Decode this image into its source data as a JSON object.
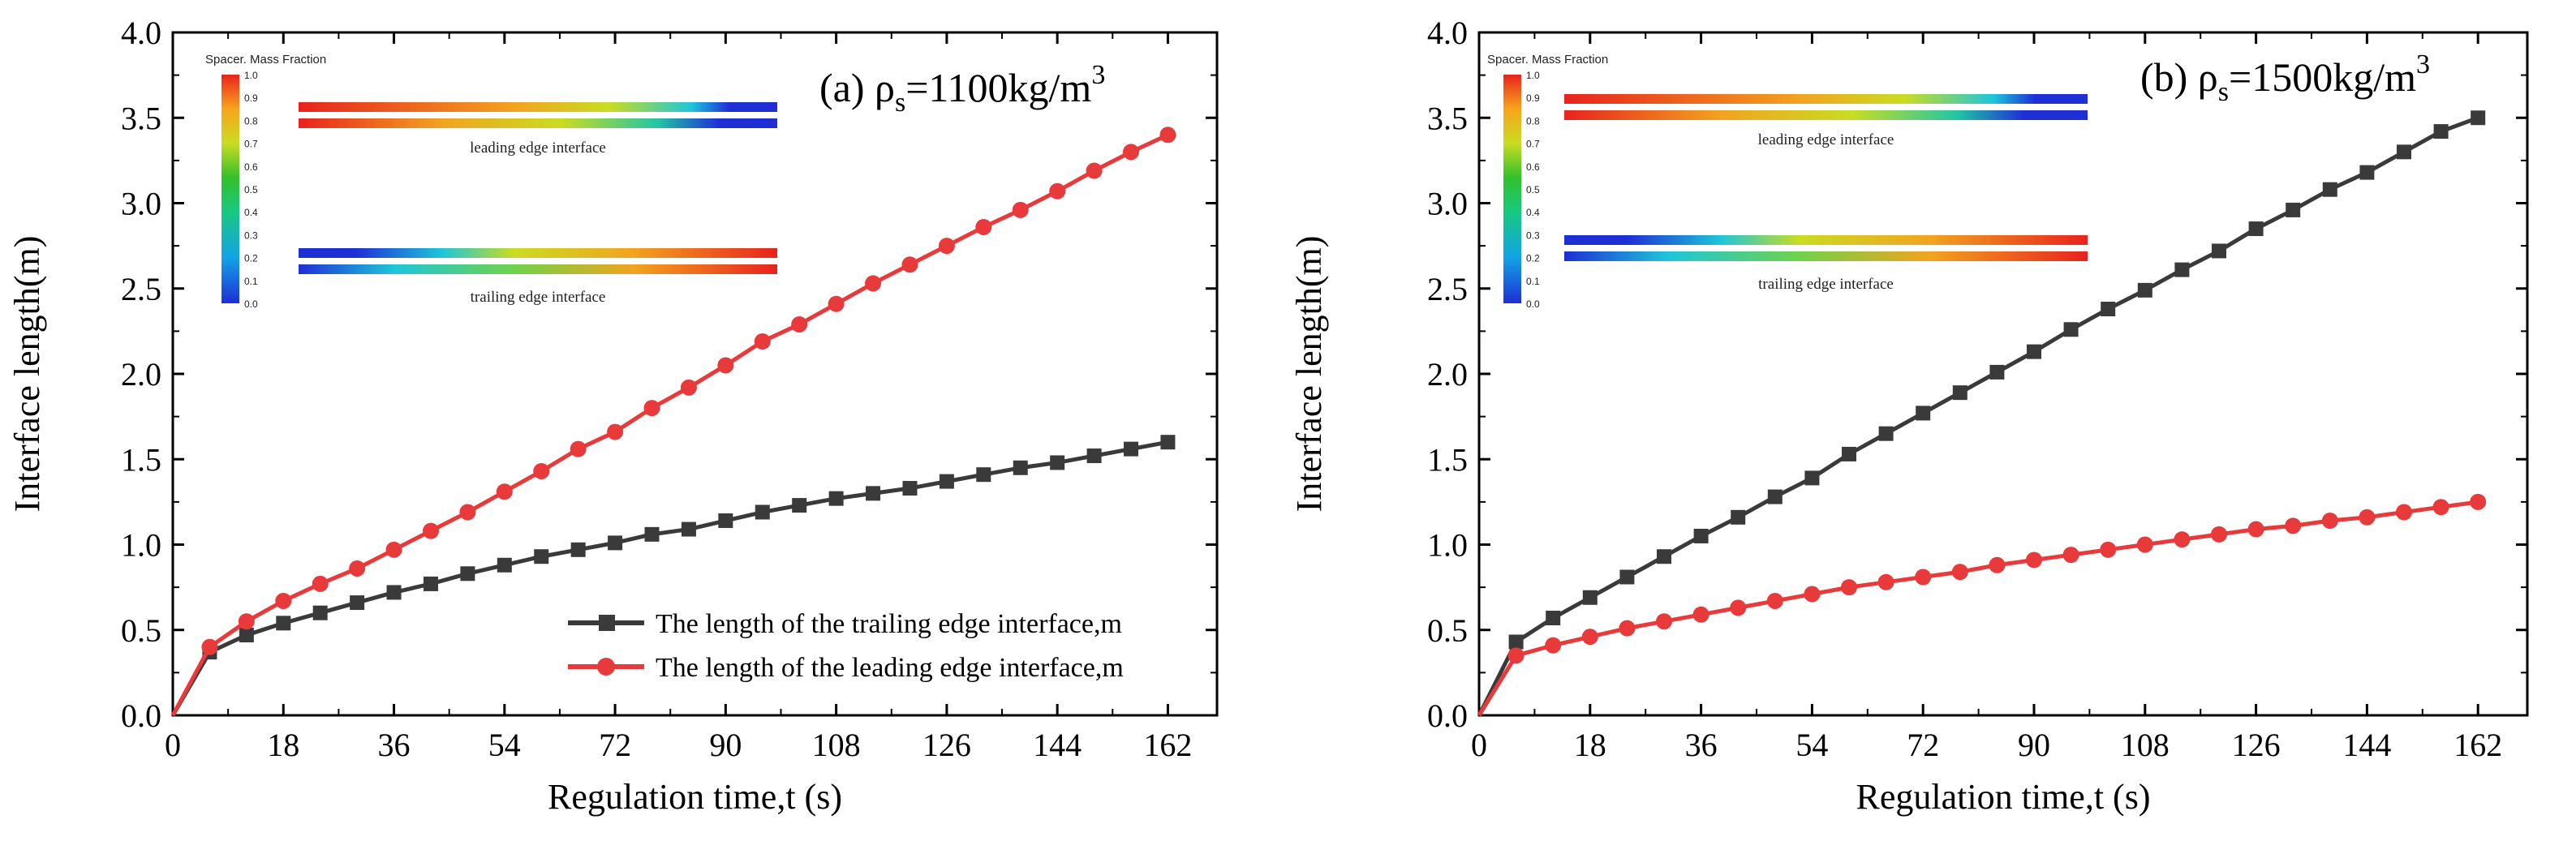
{
  "colors": {
    "trailing_series": "#3a3a3a",
    "leading_series": "#e8393b",
    "axis": "#000000"
  },
  "colorbar": {
    "title": "Spacer. Mass Fraction",
    "ticks": [
      "1.0",
      "0.9",
      "0.8",
      "0.7",
      "0.6",
      "0.5",
      "0.4",
      "0.3",
      "0.2",
      "0.1",
      "0.0"
    ]
  },
  "inset_labels": {
    "leading": "leading edge interface",
    "trailing": "trailing edge interface"
  },
  "chart_data": [
    {
      "type": "line",
      "panel": "a",
      "annotation_prefix": "(a) ρ",
      "annotation_sub": "s",
      "annotation_value": "=1100kg/m",
      "annotation_sup": "3",
      "xlabel": "Regulation time,t (s)",
      "ylabel": "Interface length(m)",
      "xlim": [
        0,
        170
      ],
      "ylim": [
        0,
        4
      ],
      "xticks": [
        0,
        18,
        36,
        54,
        72,
        90,
        108,
        126,
        144,
        162
      ],
      "yticks": [
        0.0,
        0.5,
        1.0,
        1.5,
        2.0,
        2.5,
        3.0,
        3.5,
        4.0
      ],
      "legend_position": "bottom-right",
      "series": [
        {
          "name": "The length of the trailing edge interface,m",
          "marker": "square",
          "color": "#3a3a3a",
          "x": [
            0,
            6,
            12,
            18,
            24,
            30,
            36,
            42,
            48,
            54,
            60,
            66,
            72,
            78,
            84,
            90,
            96,
            102,
            108,
            114,
            120,
            126,
            132,
            138,
            144,
            150,
            156,
            162
          ],
          "y": [
            0,
            0.37,
            0.47,
            0.54,
            0.6,
            0.66,
            0.72,
            0.77,
            0.83,
            0.88,
            0.93,
            0.97,
            1.01,
            1.06,
            1.09,
            1.14,
            1.19,
            1.23,
            1.27,
            1.3,
            1.33,
            1.37,
            1.41,
            1.45,
            1.48,
            1.52,
            1.56,
            1.6
          ]
        },
        {
          "name": "The length of the leading edge interface,m",
          "marker": "circle",
          "color": "#e8393b",
          "x": [
            0,
            6,
            12,
            18,
            24,
            30,
            36,
            42,
            48,
            54,
            60,
            66,
            72,
            78,
            84,
            90,
            96,
            102,
            108,
            114,
            120,
            126,
            132,
            138,
            144,
            150,
            156,
            162
          ],
          "y": [
            0,
            0.4,
            0.55,
            0.67,
            0.77,
            0.86,
            0.97,
            1.08,
            1.19,
            1.31,
            1.43,
            1.56,
            1.66,
            1.8,
            1.92,
            2.05,
            2.19,
            2.29,
            2.41,
            2.53,
            2.64,
            2.75,
            2.86,
            2.96,
            3.07,
            3.19,
            3.3,
            3.4
          ]
        }
      ]
    },
    {
      "type": "line",
      "panel": "b",
      "annotation_prefix": "(b) ρ",
      "annotation_sub": "s",
      "annotation_value": "=1500kg/m",
      "annotation_sup": "3",
      "xlabel": "Regulation time,t (s)",
      "ylabel": "Interface length(m)",
      "xlim": [
        0,
        170
      ],
      "ylim": [
        0,
        4
      ],
      "xticks": [
        0,
        18,
        36,
        54,
        72,
        90,
        108,
        126,
        144,
        162
      ],
      "yticks": [
        0.0,
        0.5,
        1.0,
        1.5,
        2.0,
        2.5,
        3.0,
        3.5,
        4.0
      ],
      "legend_position": "none",
      "series": [
        {
          "name": "The length of the trailing edge interface,m",
          "marker": "square",
          "color": "#3a3a3a",
          "x": [
            0,
            6,
            12,
            18,
            24,
            30,
            36,
            42,
            48,
            54,
            60,
            66,
            72,
            78,
            84,
            90,
            96,
            102,
            108,
            114,
            120,
            126,
            132,
            138,
            144,
            150,
            156,
            162
          ],
          "y": [
            0,
            0.43,
            0.57,
            0.69,
            0.81,
            0.93,
            1.05,
            1.16,
            1.28,
            1.39,
            1.53,
            1.65,
            1.77,
            1.89,
            2.01,
            2.13,
            2.26,
            2.38,
            2.49,
            2.61,
            2.72,
            2.85,
            2.96,
            3.08,
            3.18,
            3.3,
            3.42,
            3.5
          ]
        },
        {
          "name": "The length of the leading edge interface,m",
          "marker": "circle",
          "color": "#e8393b",
          "x": [
            0,
            6,
            12,
            18,
            24,
            30,
            36,
            42,
            48,
            54,
            60,
            66,
            72,
            78,
            84,
            90,
            96,
            102,
            108,
            114,
            120,
            126,
            132,
            138,
            144,
            150,
            156,
            162
          ],
          "y": [
            0,
            0.35,
            0.41,
            0.46,
            0.51,
            0.55,
            0.59,
            0.63,
            0.67,
            0.71,
            0.75,
            0.78,
            0.81,
            0.84,
            0.88,
            0.91,
            0.94,
            0.97,
            1.0,
            1.03,
            1.06,
            1.09,
            1.11,
            1.14,
            1.16,
            1.19,
            1.22,
            1.25
          ]
        }
      ]
    }
  ]
}
